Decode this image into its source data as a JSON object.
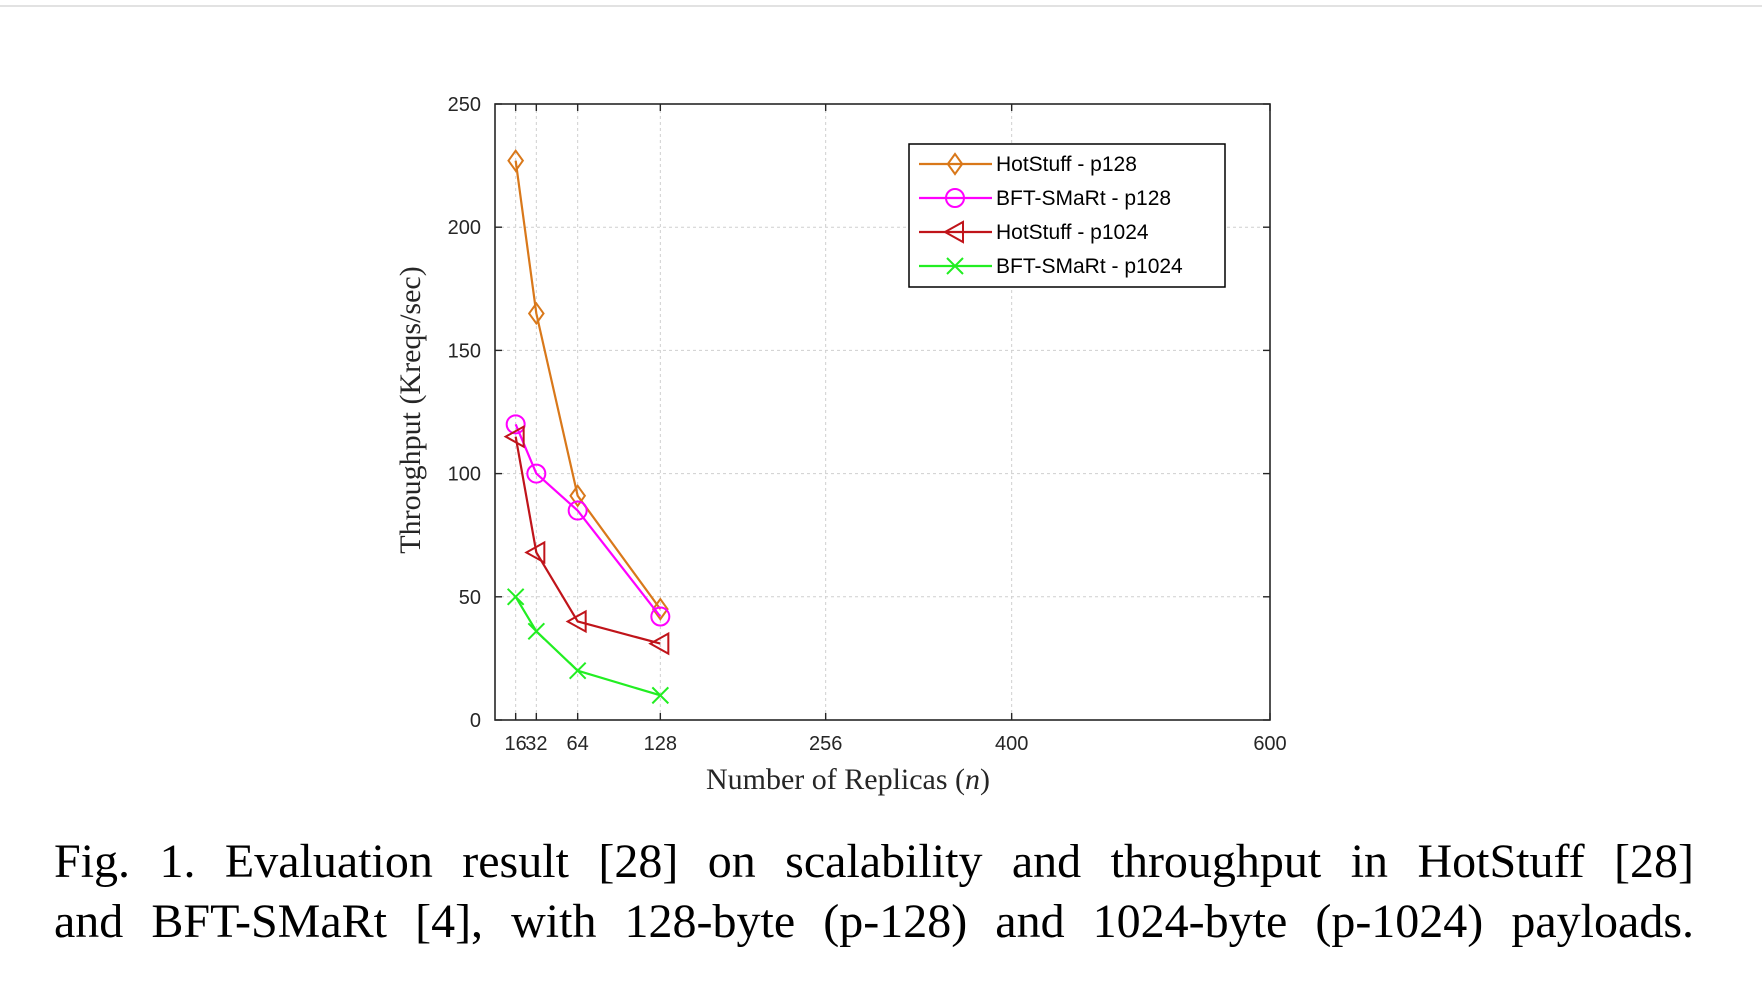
{
  "chart_data": {
    "type": "line",
    "xlabel": "Number of Replicas (n)",
    "ylabel": "Throughput (Kreqs/sec)",
    "xlim": [
      0,
      600
    ],
    "ylim": [
      0,
      250
    ],
    "xticks": [
      16,
      32,
      64,
      128,
      256,
      400,
      600
    ],
    "yticks": [
      0,
      50,
      100,
      150,
      200,
      250
    ],
    "grid": true,
    "legend_position": "top-right",
    "series": [
      {
        "name": "HotStuff - p128",
        "marker": "diamond",
        "color": "#D9781A",
        "x": [
          16,
          32,
          64,
          128
        ],
        "y": [
          227,
          165,
          91,
          45
        ]
      },
      {
        "name": "BFT-SMaRt - p128",
        "marker": "circle",
        "color": "#FF00FF",
        "x": [
          16,
          32,
          64,
          128
        ],
        "y": [
          120,
          100,
          85,
          42
        ]
      },
      {
        "name": "HotStuff - p1024",
        "marker": "triangle-left",
        "color": "#C0141A",
        "x": [
          16,
          32,
          64,
          128
        ],
        "y": [
          115,
          68,
          40,
          31
        ]
      },
      {
        "name": "BFT-SMaRt - p1024",
        "marker": "x",
        "color": "#22EE22",
        "x": [
          16,
          32,
          64,
          128
        ],
        "y": [
          50,
          36,
          20,
          10
        ]
      }
    ]
  },
  "caption": {
    "line1": "Fig. 1.  Evaluation result [28] on scalability and throughput in HotStuff [28]",
    "line2": "and BFT-SMaRt [4], with 128-byte (p-128) and 1024-byte (p-1024) payloads."
  }
}
